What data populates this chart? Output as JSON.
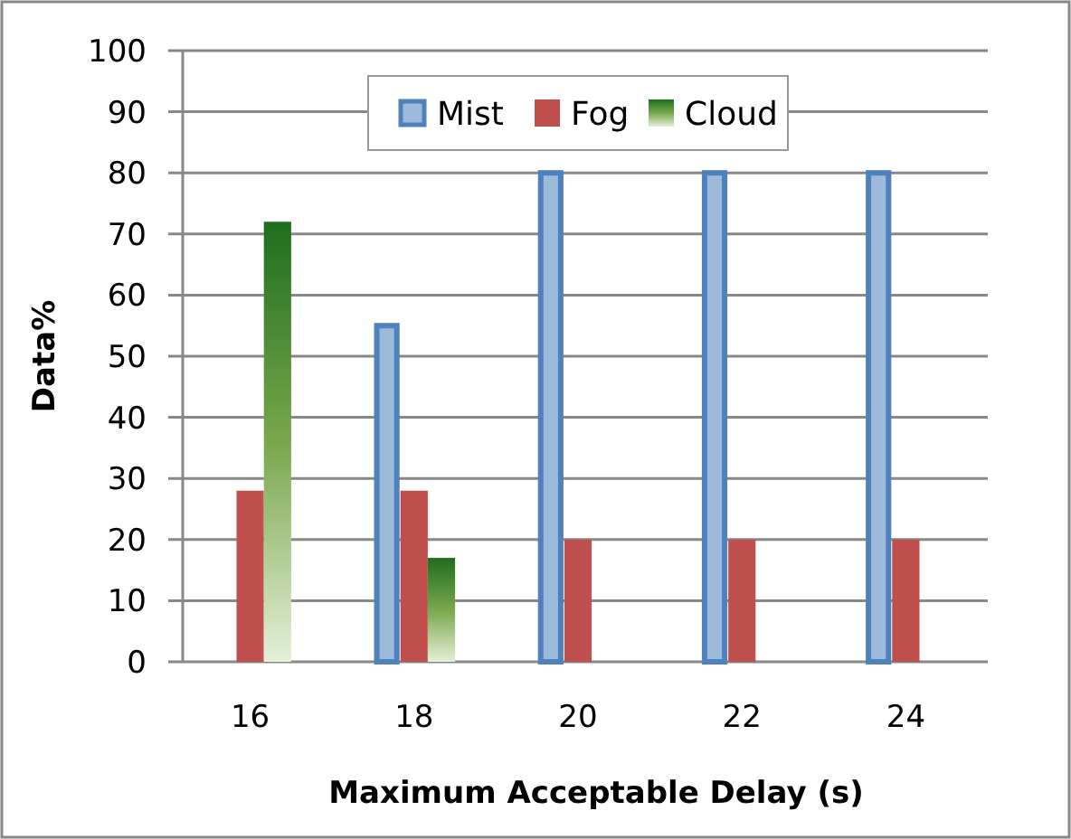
{
  "chart_data": {
    "type": "bar",
    "xlabel": "Maximum Acceptable Delay (s)",
    "ylabel": "Data%",
    "categories": [
      "16",
      "18",
      "20",
      "22",
      "24"
    ],
    "series": [
      {
        "name": "Mist",
        "color": "#4f81bd",
        "values": [
          0,
          55,
          80,
          80,
          80
        ]
      },
      {
        "name": "Fog",
        "color": "#c0504d",
        "values": [
          28,
          28,
          20,
          20,
          20
        ]
      },
      {
        "name": "Cloud",
        "color": "#1e6e1e",
        "values": [
          72,
          17,
          0,
          0,
          0
        ]
      }
    ],
    "ylim": [
      0,
      100
    ],
    "yticks": [
      0,
      10,
      20,
      30,
      40,
      50,
      60,
      70,
      80,
      90,
      100
    ],
    "grid": "y",
    "legend": "top"
  }
}
